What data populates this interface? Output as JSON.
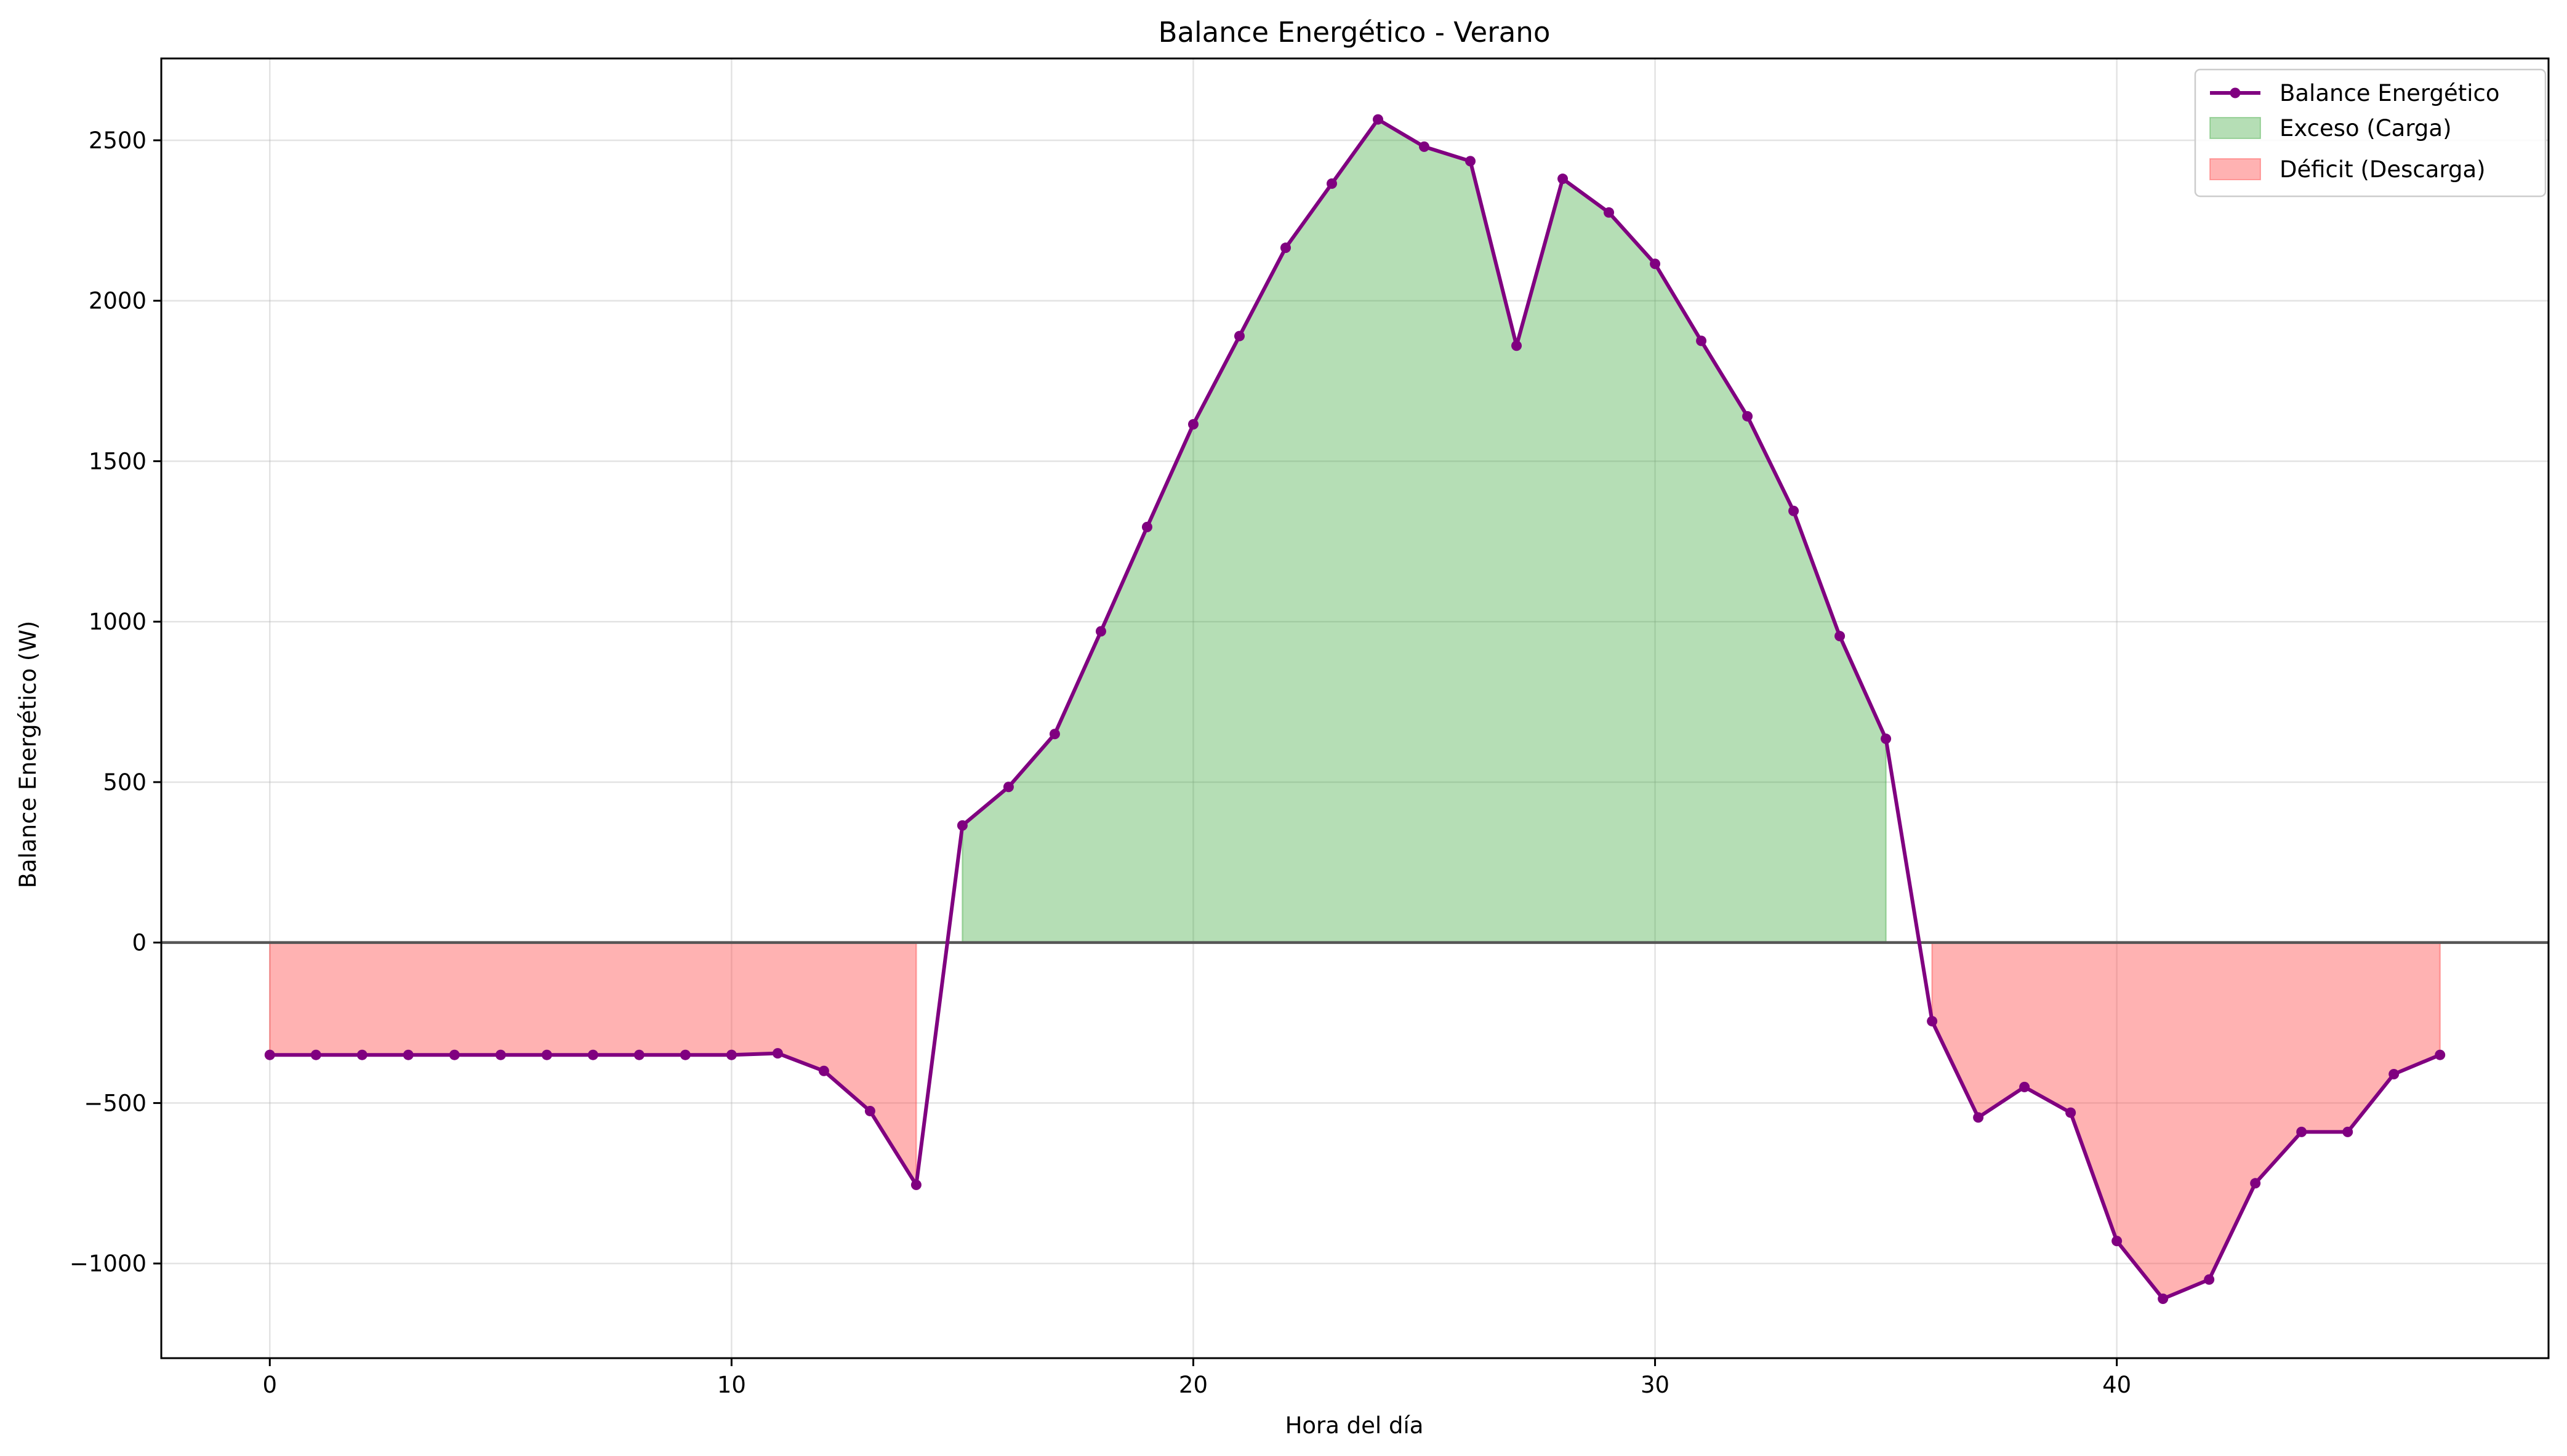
{
  "chart_data": {
    "type": "line",
    "title": "Balance Energético - Verano",
    "xlabel": "Hora del día",
    "ylabel": "Balance Energético (W)",
    "xlim": [
      -2.35,
      49.35
    ],
    "ylim": [
      -1295,
      2755
    ],
    "xticks": [
      0,
      10,
      20,
      30,
      40
    ],
    "xtick_labels": [
      "0",
      "10",
      "20",
      "30",
      "40"
    ],
    "yticks": [
      -1000,
      -500,
      0,
      500,
      1000,
      1500,
      2000,
      2500
    ],
    "ytick_labels": [
      "−1000",
      "−500",
      "0",
      "500",
      "1000",
      "1500",
      "2000",
      "2500"
    ],
    "grid": true,
    "legend_position": "upper right",
    "x": [
      0,
      1,
      2,
      3,
      4,
      5,
      6,
      7,
      8,
      9,
      10,
      11,
      12,
      13,
      14,
      15,
      16,
      17,
      18,
      19,
      20,
      21,
      22,
      23,
      24,
      25,
      26,
      27,
      28,
      29,
      30,
      31,
      32,
      33,
      34,
      35,
      36,
      37,
      38,
      39,
      40,
      41,
      42,
      43,
      44,
      45,
      46,
      47
    ],
    "series": [
      {
        "name": "Balance Energético",
        "color": "#800080",
        "values": [
          -350,
          -350,
          -350,
          -350,
          -350,
          -350,
          -350,
          -350,
          -350,
          -350,
          -350,
          -345,
          -400,
          -525,
          -755,
          365,
          485,
          650,
          970,
          1295,
          1615,
          1890,
          2165,
          2365,
          2565,
          2480,
          2435,
          1860,
          2380,
          2275,
          2115,
          1875,
          1640,
          1345,
          955,
          635,
          -245,
          -545,
          -450,
          -530,
          -930,
          -1110,
          -1050,
          -750,
          -590,
          -590,
          -410,
          -350
        ]
      }
    ],
    "fills": [
      {
        "name": "Exceso (Carga)",
        "color": "#2ca02c",
        "opacity": 0.35,
        "condition": "positive"
      },
      {
        "name": "Déficit (Descarga)",
        "color": "#ff4d4d",
        "opacity": 0.43,
        "condition": "negative"
      }
    ],
    "zero_line_color": "#555555"
  }
}
